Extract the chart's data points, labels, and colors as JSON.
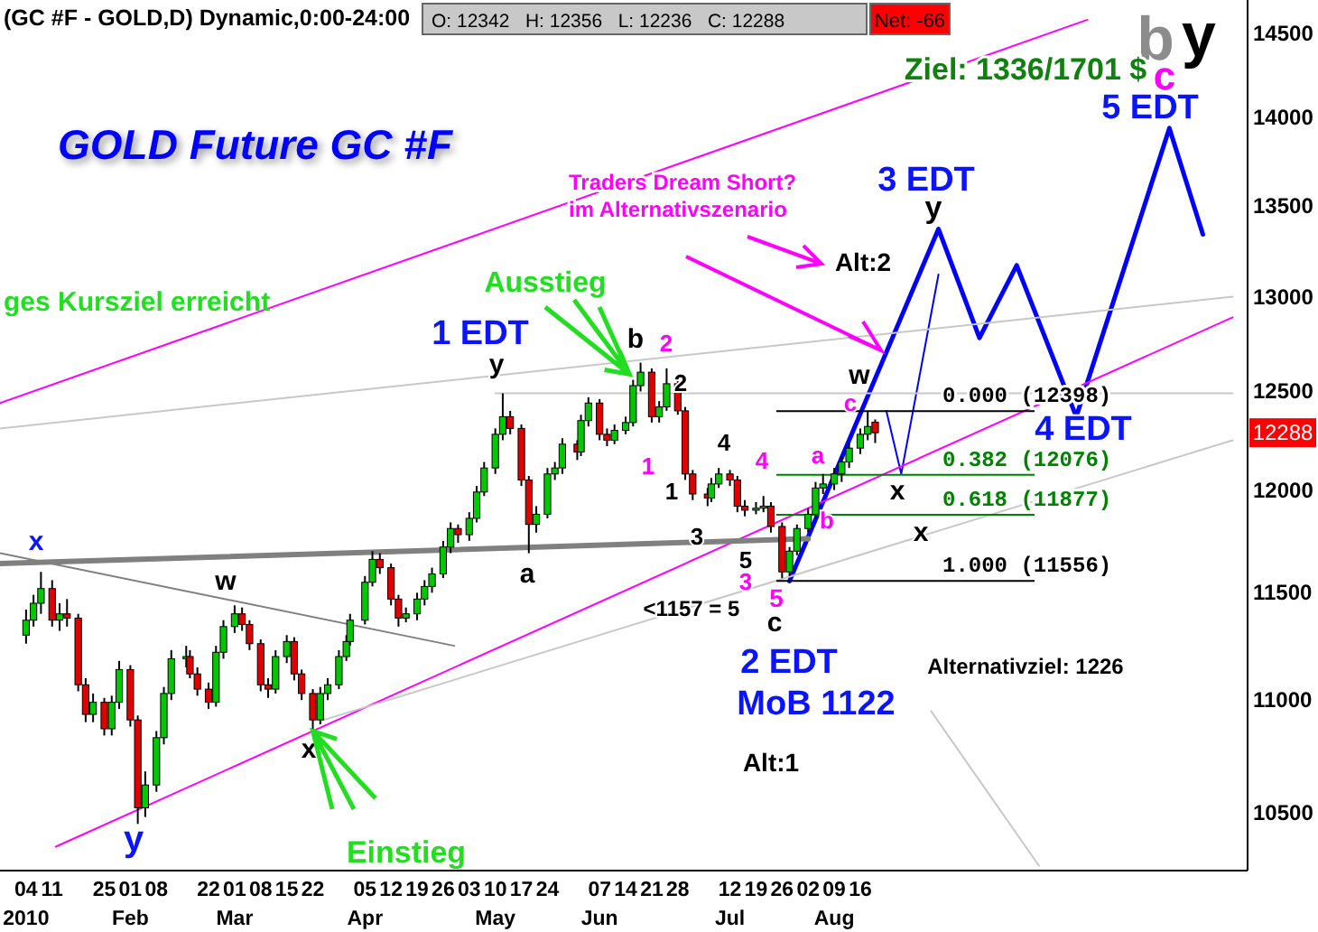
{
  "chart_data": {
    "type": "candlestick",
    "title": "GOLD Future GC #F",
    "subtitle": "(GC #F - GOLD,D) Dynamic,0:00-24:00",
    "log": true,
    "xlim": [
      "2009-12-28",
      "2010-11-28"
    ],
    "ylim": [
      10250,
      14700
    ],
    "yticks": [
      10500,
      11000,
      11500,
      12000,
      12500,
      13000,
      13500,
      14000,
      14500
    ],
    "xticks": [
      {
        "value": "2010-01-04",
        "label": "04\n2010"
      },
      {
        "value": "2010-01-11",
        "label": "11"
      },
      {
        "value": "2010-01-25",
        "label": "25"
      },
      {
        "value": "2010-02-01",
        "label": "01\nFeb"
      },
      {
        "value": "2010-02-08",
        "label": "08"
      },
      {
        "value": "2010-02-22",
        "label": "22"
      },
      {
        "value": "2010-03-01",
        "label": "01\nMar"
      },
      {
        "value": "2010-03-08",
        "label": "08"
      },
      {
        "value": "2010-03-15",
        "label": "15"
      },
      {
        "value": "2010-03-22",
        "label": "22"
      },
      {
        "value": "2010-04-05",
        "label": "05\nApr"
      },
      {
        "value": "2010-04-12",
        "label": "12"
      },
      {
        "value": "2010-04-19",
        "label": "19"
      },
      {
        "value": "2010-04-26",
        "label": "26"
      },
      {
        "value": "2010-05-03",
        "label": "03"
      },
      {
        "value": "2010-05-10",
        "label": "10\nMay"
      },
      {
        "value": "2010-05-17",
        "label": "17"
      },
      {
        "value": "2010-05-24",
        "label": "24"
      },
      {
        "value": "2010-06-07",
        "label": "07\nJun"
      },
      {
        "value": "2010-06-14",
        "label": "14"
      },
      {
        "value": "2010-06-21",
        "label": "21"
      },
      {
        "value": "2010-06-28",
        "label": "28"
      },
      {
        "value": "2010-07-12",
        "label": "12\nJul"
      },
      {
        "value": "2010-07-19",
        "label": "19"
      },
      {
        "value": "2010-07-26",
        "label": "26"
      },
      {
        "value": "2010-08-02",
        "label": "02"
      },
      {
        "value": "2010-08-09",
        "label": "09\nAug"
      },
      {
        "value": "2010-08-16",
        "label": "16"
      }
    ],
    "series": [
      {
        "x": [
          "2010-01-04",
          "2010-01-06",
          "2010-01-08",
          "2010-01-11",
          "2010-01-13",
          "2010-01-15",
          "2010-01-18",
          "2010-01-20",
          "2010-01-22",
          "2010-01-25",
          "2010-01-27",
          "2010-01-29",
          "2010-02-01",
          "2010-02-03",
          "2010-02-05",
          "2010-02-08",
          "2010-02-10",
          "2010-02-12",
          "2010-02-16",
          "2010-02-17",
          "2010-02-19",
          "2010-02-22",
          "2010-02-24",
          "2010-02-26",
          "2010-03-01",
          "2010-03-03",
          "2010-03-05",
          "2010-03-08",
          "2010-03-10",
          "2010-03-12",
          "2010-03-15",
          "2010-03-17",
          "2010-03-19",
          "2010-03-22",
          "2010-03-24",
          "2010-03-26",
          "2010-03-29",
          "2010-03-31",
          "2010-04-01",
          "2010-04-05",
          "2010-04-07",
          "2010-04-09",
          "2010-04-12",
          "2010-04-14",
          "2010-04-16",
          "2010-04-19",
          "2010-04-21",
          "2010-04-23",
          "2010-04-26",
          "2010-04-28",
          "2010-04-30",
          "2010-05-03",
          "2010-05-05",
          "2010-05-07",
          "2010-05-10",
          "2010-05-12",
          "2010-05-14",
          "2010-05-17",
          "2010-05-19",
          "2010-05-21",
          "2010-05-24",
          "2010-05-26",
          "2010-05-28",
          "2010-06-01",
          "2010-06-02",
          "2010-06-04",
          "2010-06-07",
          "2010-06-09",
          "2010-06-11",
          "2010-06-14",
          "2010-06-16",
          "2010-06-18",
          "2010-06-21",
          "2010-06-23",
          "2010-06-25",
          "2010-06-28",
          "2010-06-30",
          "2010-07-02",
          "2010-07-06",
          "2010-07-07",
          "2010-07-09",
          "2010-07-12",
          "2010-07-14",
          "2010-07-16",
          "2010-07-19",
          "2010-07-21",
          "2010-07-23",
          "2010-07-26",
          "2010-07-28",
          "2010-07-30",
          "2010-08-02",
          "2010-08-04",
          "2010-08-06",
          "2010-08-09",
          "2010-08-11",
          "2010-08-13",
          "2010-08-16",
          "2010-08-18",
          "2010-08-20"
        ],
        "ohlc": [
          [
            11300,
            11420,
            11260,
            11370
          ],
          [
            11370,
            11490,
            11340,
            11450
          ],
          [
            11450,
            11600,
            11400,
            11520
          ],
          [
            11520,
            11560,
            11340,
            11370
          ],
          [
            11370,
            11450,
            11320,
            11400
          ],
          [
            11400,
            11470,
            11340,
            11380
          ],
          [
            11380,
            11400,
            11040,
            11070
          ],
          [
            11070,
            11100,
            10900,
            10935
          ],
          [
            10935,
            11030,
            10900,
            10990
          ],
          [
            10990,
            11010,
            10840,
            10870
          ],
          [
            10870,
            11020,
            10840,
            10990
          ],
          [
            10990,
            11180,
            10960,
            11140
          ],
          [
            11140,
            11160,
            10880,
            10910
          ],
          [
            10910,
            10930,
            10450,
            10520
          ],
          [
            10520,
            10680,
            10480,
            10620
          ],
          [
            10620,
            10860,
            10590,
            10830
          ],
          [
            10830,
            11060,
            10800,
            11030
          ],
          [
            11030,
            11230,
            11000,
            11190
          ],
          [
            11190,
            11250,
            11150,
            11200
          ],
          [
            11200,
            11230,
            11100,
            11120
          ],
          [
            11120,
            11150,
            11020,
            11050
          ],
          [
            11050,
            11080,
            10960,
            10990
          ],
          [
            10990,
            11250,
            10970,
            11220
          ],
          [
            11220,
            11370,
            11190,
            11340
          ],
          [
            11340,
            11440,
            11310,
            11400
          ],
          [
            11400,
            11430,
            11320,
            11350
          ],
          [
            11350,
            11370,
            11230,
            11260
          ],
          [
            11260,
            11280,
            11040,
            11070
          ],
          [
            11070,
            11100,
            11010,
            11050
          ],
          [
            11050,
            11230,
            11030,
            11200
          ],
          [
            11200,
            11300,
            11170,
            11270
          ],
          [
            11270,
            11290,
            11090,
            11120
          ],
          [
            11120,
            11140,
            11000,
            11030
          ],
          [
            11030,
            11050,
            10860,
            10910
          ],
          [
            10910,
            11060,
            10890,
            11030
          ],
          [
            11030,
            11100,
            11000,
            11070
          ],
          [
            11070,
            11230,
            11050,
            11200
          ],
          [
            11200,
            11300,
            11180,
            11270
          ],
          [
            11270,
            11400,
            11250,
            11370
          ],
          [
            11370,
            11580,
            11350,
            11550
          ],
          [
            11550,
            11700,
            11530,
            11660
          ],
          [
            11660,
            11690,
            11590,
            11620
          ],
          [
            11620,
            11640,
            11440,
            11470
          ],
          [
            11470,
            11490,
            11340,
            11380
          ],
          [
            11380,
            11430,
            11360,
            11400
          ],
          [
            11400,
            11500,
            11370,
            11470
          ],
          [
            11470,
            11560,
            11440,
            11530
          ],
          [
            11530,
            11620,
            11500,
            11590
          ],
          [
            11590,
            11750,
            11570,
            11720
          ],
          [
            11720,
            11840,
            11690,
            11810
          ],
          [
            11810,
            11830,
            11740,
            11780
          ],
          [
            11780,
            11890,
            11750,
            11860
          ],
          [
            11860,
            12020,
            11840,
            11990
          ],
          [
            11990,
            12140,
            11970,
            12110
          ],
          [
            12110,
            12310,
            12080,
            12280
          ],
          [
            12280,
            12490,
            12250,
            12370
          ],
          [
            12370,
            12400,
            12280,
            12310
          ],
          [
            12310,
            12330,
            12020,
            12050
          ],
          [
            12050,
            12070,
            11690,
            11830
          ],
          [
            11830,
            11920,
            11790,
            11880
          ],
          [
            11880,
            12110,
            11860,
            12080
          ],
          [
            12080,
            12140,
            12050,
            12110
          ],
          [
            12110,
            12260,
            12080,
            12230
          ],
          [
            12230,
            12250,
            12150,
            12190
          ],
          [
            12190,
            12380,
            12170,
            12350
          ],
          [
            12350,
            12470,
            12320,
            12440
          ],
          [
            12440,
            12460,
            12250,
            12280
          ],
          [
            12280,
            12310,
            12220,
            12250
          ],
          [
            12250,
            12330,
            12230,
            12300
          ],
          [
            12300,
            12370,
            12280,
            12340
          ],
          [
            12340,
            12560,
            12320,
            12530
          ],
          [
            12530,
            12650,
            12500,
            12600
          ],
          [
            12600,
            12620,
            12340,
            12370
          ],
          [
            12370,
            12450,
            12340,
            12420
          ],
          [
            12420,
            12620,
            12400,
            12540
          ],
          [
            12540,
            12560,
            12380,
            12400
          ],
          [
            12400,
            12420,
            12050,
            12080
          ],
          [
            12080,
            12100,
            11950,
            11980
          ],
          [
            11980,
            12010,
            11920,
            11960
          ],
          [
            11960,
            12060,
            11940,
            12030
          ],
          [
            12030,
            12110,
            12010,
            12080
          ],
          [
            12080,
            12100,
            12020,
            12050
          ],
          [
            12050,
            12070,
            11890,
            11920
          ],
          [
            11920,
            11950,
            11870,
            11900
          ],
          [
            11900,
            11940,
            11880,
            11910
          ],
          [
            11910,
            11970,
            11890,
            11920
          ],
          [
            11920,
            11940,
            11790,
            11820
          ],
          [
            11820,
            11840,
            11570,
            11600
          ],
          [
            11600,
            11720,
            11580,
            11700
          ],
          [
            11700,
            11830,
            11680,
            11810
          ],
          [
            11810,
            11910,
            11790,
            11880
          ],
          [
            11880,
            12040,
            11860,
            12010
          ],
          [
            12010,
            12080,
            11980,
            12030
          ],
          [
            12030,
            12110,
            12000,
            12080
          ],
          [
            12080,
            12170,
            12040,
            12140
          ],
          [
            12140,
            12240,
            12110,
            12210
          ],
          [
            12210,
            12310,
            12180,
            12280
          ],
          [
            12280,
            12398,
            12250,
            12320
          ],
          [
            12342,
            12356,
            12236,
            12288
          ]
        ]
      },
      {
        "type": "line",
        "color": "#0000ff",
        "x": [
          "2010-07-28",
          "2010-09-06",
          "2010-09-17",
          "2010-09-27",
          "2010-10-13",
          "2010-11-07",
          "2010-11-16"
        ],
        "values": [
          11556,
          13370,
          12780,
          13170,
          12370,
          13940,
          13340
        ]
      },
      {
        "type": "line",
        "color": "#0000ff",
        "x": [
          "2010-08-23",
          "2010-08-27",
          "2010-09-06"
        ],
        "values": [
          12400,
          12080,
          13120
        ]
      },
      {
        "type": "line",
        "color": "#ff00ff",
        "x": [
          "2009-12-28",
          "2010-10-16"
        ],
        "values": [
          12440,
          14580
        ]
      },
      {
        "type": "line",
        "color": "#ff00ff",
        "x": [
          "2010-01-12",
          "2010-11-24"
        ],
        "values": [
          10352,
          12890
        ]
      },
      {
        "type": "line",
        "color": "#c8c8c8",
        "x": [
          "2009-12-28",
          "2010-11-24"
        ],
        "values": [
          12310,
          13000
        ]
      },
      {
        "type": "line",
        "color": "#c8c8c8",
        "x": [
          "2010-03-25",
          "2010-11-24"
        ],
        "values": [
          10910,
          12250
        ]
      },
      {
        "type": "line",
        "color": "#808080",
        "x": [
          "2009-12-28",
          "2010-08-02"
        ],
        "values": [
          11640,
          11760
        ]
      },
      {
        "type": "line",
        "color": "#808080",
        "x": [
          "2009-12-28",
          "2010-04-29"
        ],
        "values": [
          11690,
          11250
        ]
      },
      {
        "type": "line",
        "color": "#c8c8c8",
        "x": [
          "2010-05-10",
          "2010-11-24"
        ],
        "values": [
          12490,
          12490
        ]
      },
      {
        "type": "line",
        "color": "#c8c8c8",
        "x": [
          "2010-09-04",
          "2010-10-03"
        ],
        "values": [
          10950,
          10270
        ]
      }
    ],
    "ref_lines": [
      {
        "axis": "y",
        "value": 12398,
        "label": "0.000 (12398)",
        "color": "#000000"
      },
      {
        "axis": "y",
        "value": 12076,
        "label": "0.382 (12076)",
        "color": "#008000"
      },
      {
        "axis": "y",
        "value": 11877,
        "label": "0.618 (11877)",
        "color": "#008000"
      },
      {
        "axis": "y",
        "value": 11556,
        "label": "1.000 (11556)",
        "color": "#000000"
      }
    ],
    "annotations": [
      "x",
      "y",
      "w",
      "x",
      "y",
      "a",
      "b",
      "2",
      "2",
      "1",
      "1",
      "4",
      "3",
      "4",
      "5",
      "3",
      "5",
      "c",
      "<1157 = 5",
      "a",
      "b",
      "c",
      "w",
      "y",
      "x",
      "x",
      "3 EDT",
      "4 EDT",
      "5 EDT",
      "c",
      "b",
      "y",
      "1 EDT",
      "2 EDT",
      "MoB 1122",
      "Alt:1",
      "Alt:2",
      "Alternativziel: 1226",
      {
        "text": "Ausstieg",
        "x": "2010-06-15",
        "y": 12590
      },
      {
        "text": "Einstieg",
        "x": "2010-03-22",
        "y": 10860
      },
      {
        "text": "12288",
        "y": 12288
      },
      "O: 12342   H: 12356   L: 12236   C: 12288",
      "Net: -66",
      "Ziel: 1336/1701 $",
      "Traders Dream Short?\nim Alternativszenario",
      "ges Kursziel erreicht"
    ]
  }
}
